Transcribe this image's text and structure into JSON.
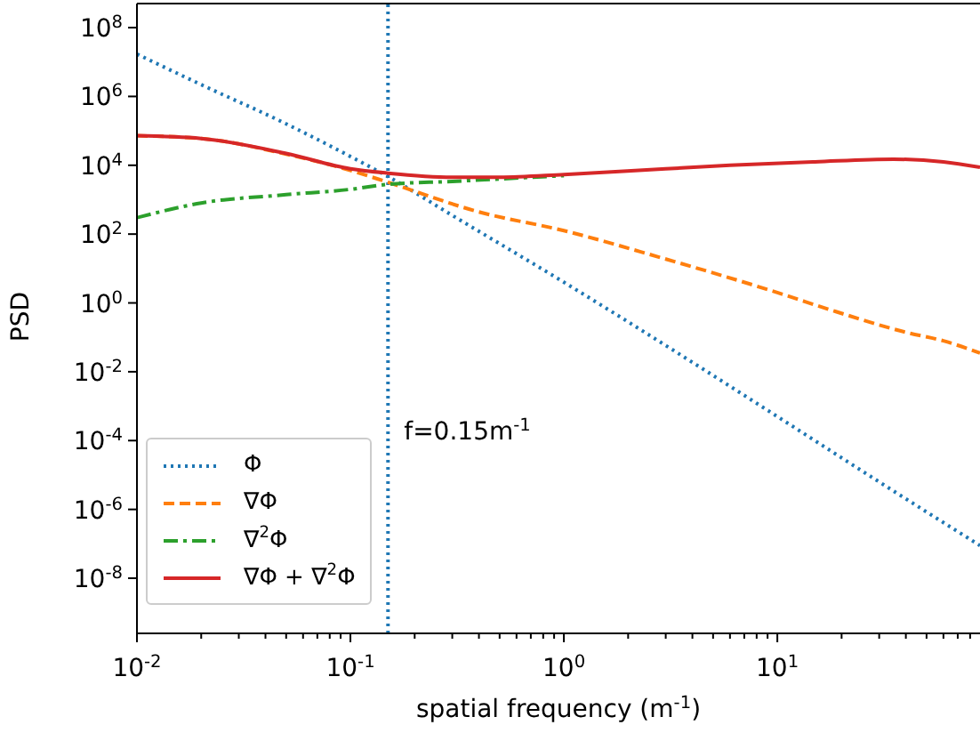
{
  "chart_data": {
    "type": "line",
    "xlabel": "spatial frequency (m$^{-1}$)",
    "ylabel": "PSD",
    "log": "xy",
    "grid": false,
    "legend": "lower left",
    "xlim": [
      0.01,
      89
    ],
    "ylim": [
      2.5e-10,
      500000000.0
    ],
    "xticks": [
      {
        "value": 0.01,
        "label": "10$^{-2}$"
      },
      {
        "value": 0.02,
        "label": null
      },
      {
        "value": 0.03,
        "label": null
      },
      {
        "value": 0.04,
        "label": null
      },
      {
        "value": 0.05,
        "label": null
      },
      {
        "value": 0.06,
        "label": null
      },
      {
        "value": 0.07,
        "label": null
      },
      {
        "value": 0.08,
        "label": null
      },
      {
        "value": 0.09,
        "label": null
      },
      {
        "value": 0.1,
        "label": "10$^{-1}$"
      },
      {
        "value": 0.2,
        "label": null
      },
      {
        "value": 0.3,
        "label": null
      },
      {
        "value": 0.4,
        "label": null
      },
      {
        "value": 0.5,
        "label": null
      },
      {
        "value": 0.6,
        "label": null
      },
      {
        "value": 0.7,
        "label": null
      },
      {
        "value": 0.8,
        "label": null
      },
      {
        "value": 0.9,
        "label": null
      },
      {
        "value": 1,
        "label": "10$^{0}$"
      },
      {
        "value": 2,
        "label": null
      },
      {
        "value": 3,
        "label": null
      },
      {
        "value": 4,
        "label": null
      },
      {
        "value": 5,
        "label": null
      },
      {
        "value": 6,
        "label": null
      },
      {
        "value": 7,
        "label": null
      },
      {
        "value": 8,
        "label": null
      },
      {
        "value": 9,
        "label": null
      },
      {
        "value": 10,
        "label": "10$^{1}$"
      },
      {
        "value": 20,
        "label": null
      },
      {
        "value": 30,
        "label": null
      },
      {
        "value": 40,
        "label": null
      },
      {
        "value": 50,
        "label": null
      },
      {
        "value": 60,
        "label": null
      },
      {
        "value": 70,
        "label": null
      },
      {
        "value": 80,
        "label": null
      }
    ],
    "yticks": [
      {
        "value": 1e-08,
        "label": "10$^{-8}$"
      },
      {
        "value": 1e-06,
        "label": "10$^{-6}$"
      },
      {
        "value": 0.0001,
        "label": "10$^{-4}$"
      },
      {
        "value": 0.01,
        "label": "10$^{-2}$"
      },
      {
        "value": 1,
        "label": "10$^{0}$"
      },
      {
        "value": 100,
        "label": "10$^{2}$"
      },
      {
        "value": 10000,
        "label": "10$^{4}$"
      },
      {
        "value": 1000000,
        "label": "10$^{6}$"
      },
      {
        "value": 100000000,
        "label": "10$^{8}$"
      }
    ],
    "series": [
      {
        "name": "Φ",
        "color": "#1f77b4",
        "line_style": "dotted",
        "x": [
          0.01,
          0.02,
          0.05,
          0.1,
          0.15,
          0.3,
          1,
          3.8,
          10,
          30,
          89
        ],
        "values": [
          17000000.0,
          2200000.0,
          160000.0,
          18000.0,
          4700.0,
          350,
          4,
          0.023,
          0.0005,
          6.3e-06,
          8.9e-08
        ]
      },
      {
        "name": "∇Φ",
        "color": "#ff7f0e",
        "line_style": "dashed",
        "x": [
          0.01,
          0.02,
          0.05,
          0.1,
          0.15,
          0.4,
          1,
          2.75,
          10,
          18.8,
          40,
          60,
          89
        ],
        "values": [
          72000.0,
          60000.0,
          21000.0,
          7100.0,
          3200.0,
          440,
          126,
          22,
          2,
          0.56,
          0.14,
          0.079,
          0.035
        ]
      },
      {
        "name": "∇$^{2}$Φ",
        "color": "#2ca02c",
        "line_style": "dashdot",
        "x": [
          0.01,
          0.02,
          0.05,
          0.1,
          0.15,
          0.3,
          0.5,
          1
        ],
        "values": [
          300,
          800,
          1400,
          2000,
          2800,
          3400,
          4000,
          5000
        ]
      },
      {
        "name": "∇Φ + ∇$^{2}$Φ",
        "color": "#d62728",
        "line_style": "solid",
        "x": [
          0.01,
          0.02,
          0.05,
          0.1,
          0.15,
          0.3,
          0.5,
          1,
          3,
          6,
          15,
          35,
          60,
          89
        ],
        "values": [
          72000,
          60000,
          22000,
          7900,
          5900,
          4500,
          4500,
          5400,
          7900,
          10000,
          12600,
          15000,
          12600,
          8700
        ]
      }
    ],
    "ref_lines": [
      {
        "axis": "x",
        "value": 0.15,
        "label": "f=0.15m$^{-1}$",
        "color": "#1f77b4",
        "line_style": "dotted"
      }
    ]
  }
}
